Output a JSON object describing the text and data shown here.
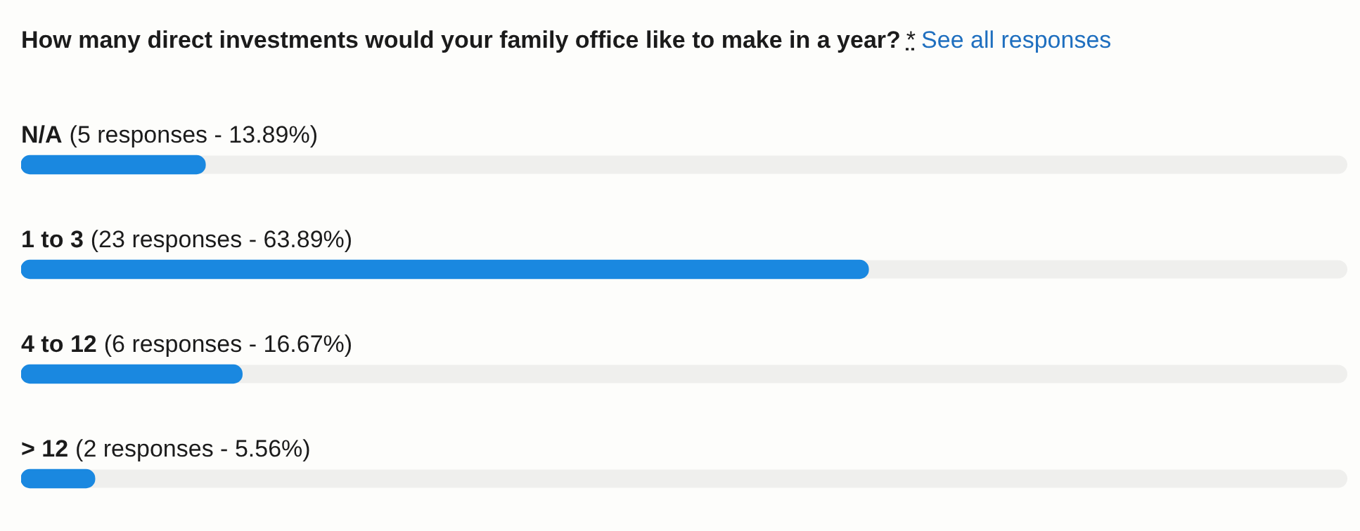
{
  "chart_data": {
    "type": "bar",
    "orientation": "horizontal",
    "title": "How many direct investments would your family office like to make in a year?",
    "annotations": [
      "*",
      "See all responses"
    ],
    "categories": [
      "N/A",
      "1 to 3",
      "4 to 12",
      "> 12"
    ],
    "values": [
      5,
      23,
      6,
      2
    ],
    "value_labels": [
      "(5 responses - 13.89%)",
      "(23 responses - 63.89%)",
      "(6 responses - 16.67%)",
      "(2 responses - 5.56%)"
    ],
    "color": "#1a88e0",
    "tick_labels": "y",
    "grid": false,
    "legend": false
  }
}
